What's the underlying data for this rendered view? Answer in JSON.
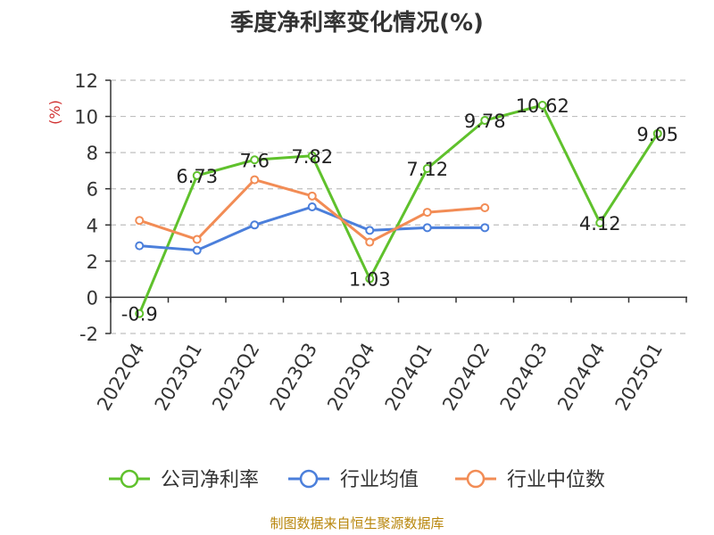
{
  "title": "季度净利率变化情况(%)",
  "unit_label": "(%)",
  "source": "制图数据来自恒生聚源数据库",
  "chart_data": {
    "type": "line",
    "title": "季度净利率变化情况(%)",
    "ylabel": "(%)",
    "ylim": [
      -2,
      12
    ],
    "yticks": [
      -2,
      0,
      2,
      4,
      6,
      8,
      10,
      12
    ],
    "grid": true,
    "legend_position": "bottom",
    "categories": [
      "2022Q4",
      "2023Q1",
      "2023Q2",
      "2023Q3",
      "2023Q4",
      "2024Q1",
      "2024Q2",
      "2024Q3",
      "2024Q4",
      "2025Q1"
    ],
    "series": [
      {
        "name": "公司净利率",
        "color": "#5fc12c",
        "values": [
          -0.9,
          6.73,
          7.6,
          7.82,
          1.03,
          7.12,
          9.78,
          10.62,
          4.12,
          9.05
        ],
        "labels": [
          "-0.9",
          "6.73",
          "7.6",
          "7.82",
          "1.03",
          "7.12",
          "9.78",
          "10.62",
          "4.12",
          "9.05"
        ],
        "show_labels": true
      },
      {
        "name": "行业均值",
        "color": "#4b7fdb",
        "values": [
          2.85,
          2.6,
          4.0,
          5.0,
          3.7,
          3.85,
          3.85,
          null,
          null,
          null
        ],
        "show_labels": false
      },
      {
        "name": "行业中位数",
        "color": "#f28c55",
        "values": [
          4.25,
          3.2,
          6.5,
          5.6,
          3.05,
          4.7,
          4.95,
          null,
          null,
          null
        ],
        "show_labels": false
      }
    ]
  }
}
